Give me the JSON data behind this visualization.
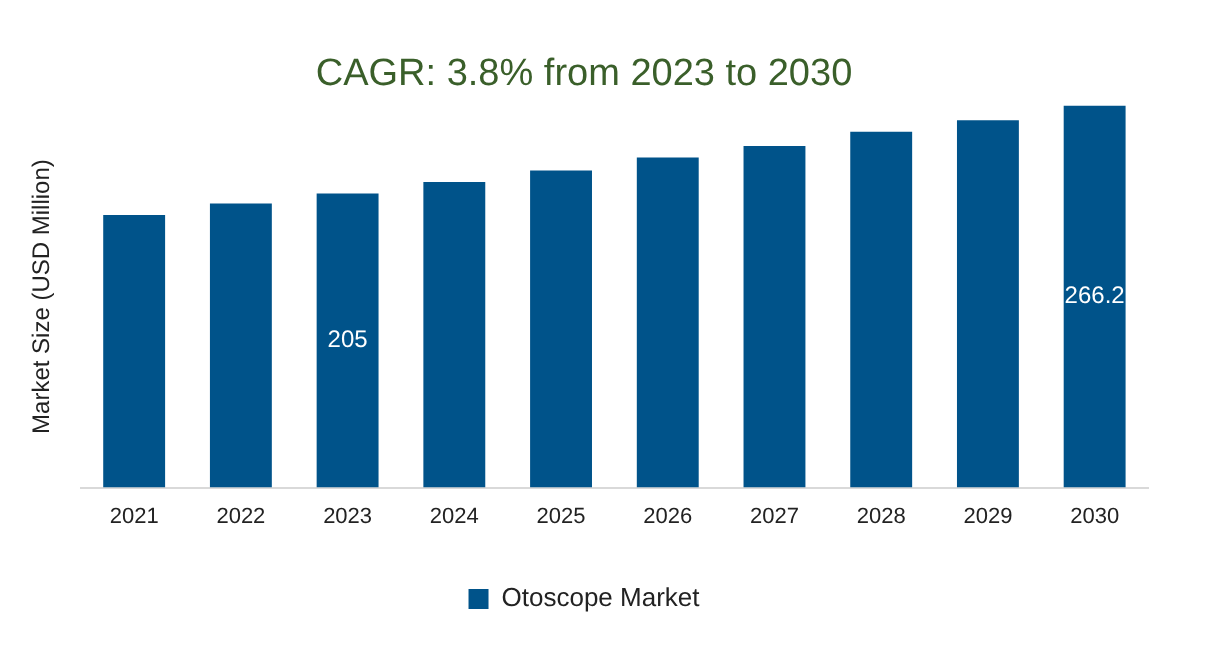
{
  "chart_data": {
    "type": "bar",
    "title": "CAGR: 3.8% from 2023 to 2030",
    "ylabel": "Market Size (USD Million)",
    "categories": [
      "2021",
      "2022",
      "2023",
      "2024",
      "2025",
      "2026",
      "2027",
      "2028",
      "2029",
      "2030"
    ],
    "series": [
      {
        "name": "Otoscope Market",
        "color": "#00538a",
        "values": [
          190,
          198,
          205,
          213,
          221,
          230,
          238,
          248,
          256,
          266.2
        ],
        "value_labels": [
          null,
          null,
          "205",
          null,
          null,
          null,
          null,
          null,
          null,
          "266.2"
        ]
      }
    ],
    "legend": "bottom",
    "grid": false
  }
}
